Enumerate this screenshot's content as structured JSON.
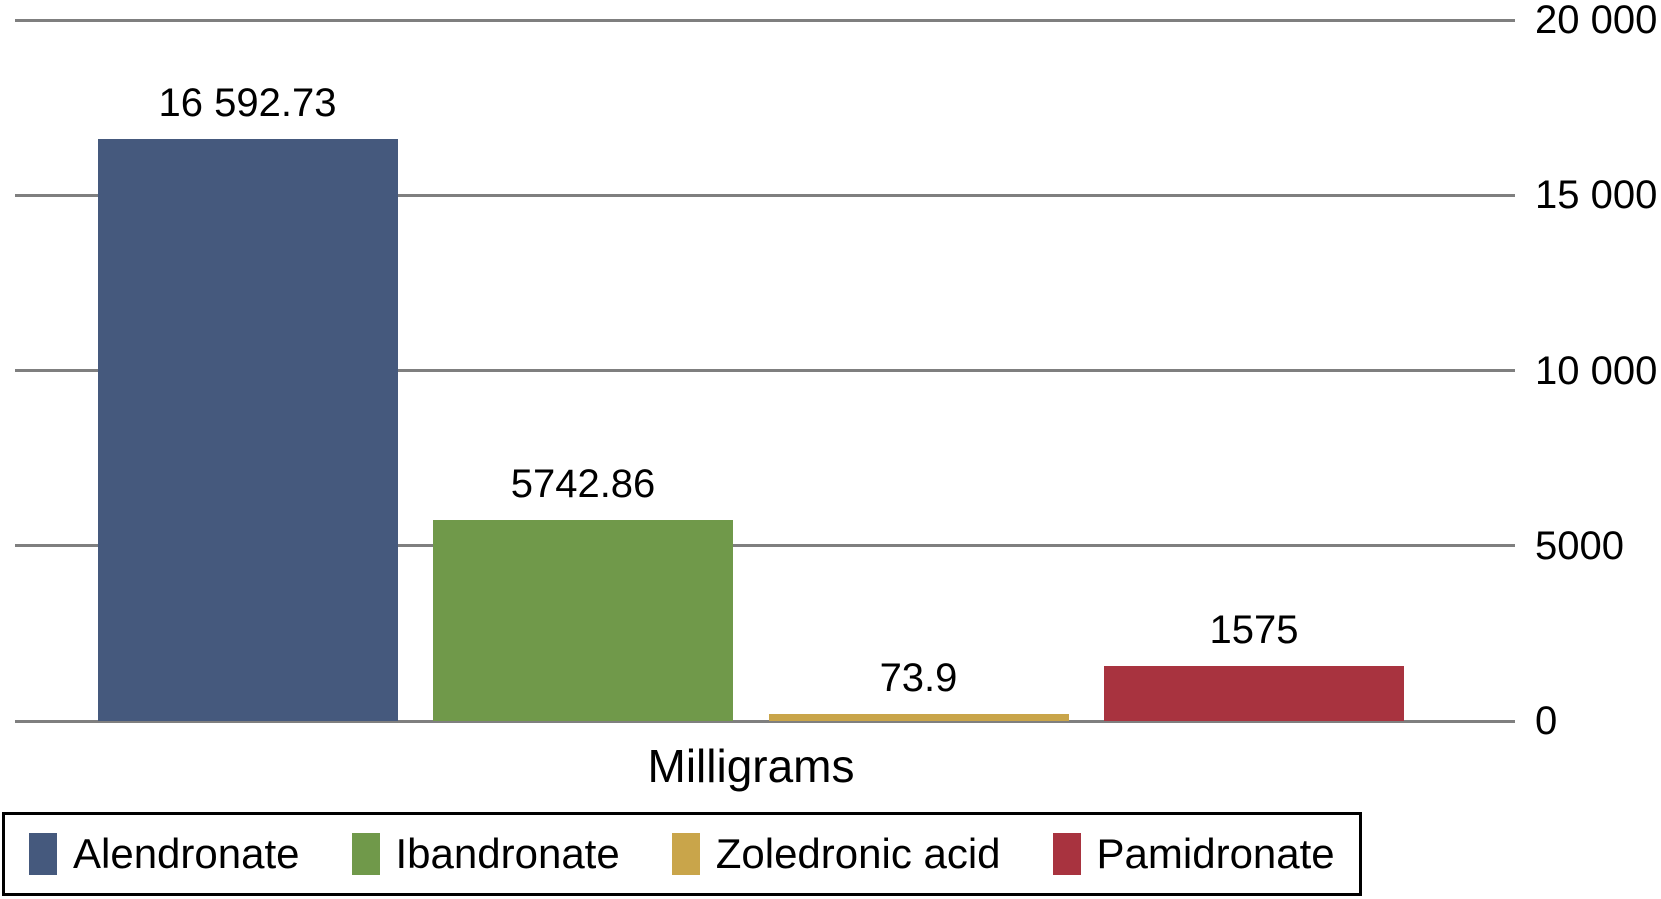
{
  "chart_data": {
    "type": "bar",
    "title": "",
    "xlabel": "Milligrams",
    "ylabel": "",
    "categories": [
      "Alendronate",
      "Ibandronate",
      "Zoledronic acid",
      "Pamidronate"
    ],
    "values": [
      16592.73,
      5742.86,
      73.9,
      1575
    ],
    "value_labels": [
      "16 592.73",
      "5742.86",
      "73.9",
      "1575"
    ],
    "bar_colors": [
      "#45597d",
      "#70994a",
      "#c9a54a",
      "#a8333f"
    ],
    "ylim": [
      0,
      20000
    ],
    "yticks": [
      {
        "value": 20000,
        "label": "20 000"
      },
      {
        "value": 15000,
        "label": "15 000"
      },
      {
        "value": 10000,
        "label": "10 000"
      },
      {
        "value": 5000,
        "label": "5000"
      },
      {
        "value": 0,
        "label": "0"
      }
    ],
    "grid": true,
    "gridline_color": "#7f7f7f",
    "text_color": "#000000",
    "legend_position": "bottom",
    "legend_border_color": "#000000"
  }
}
